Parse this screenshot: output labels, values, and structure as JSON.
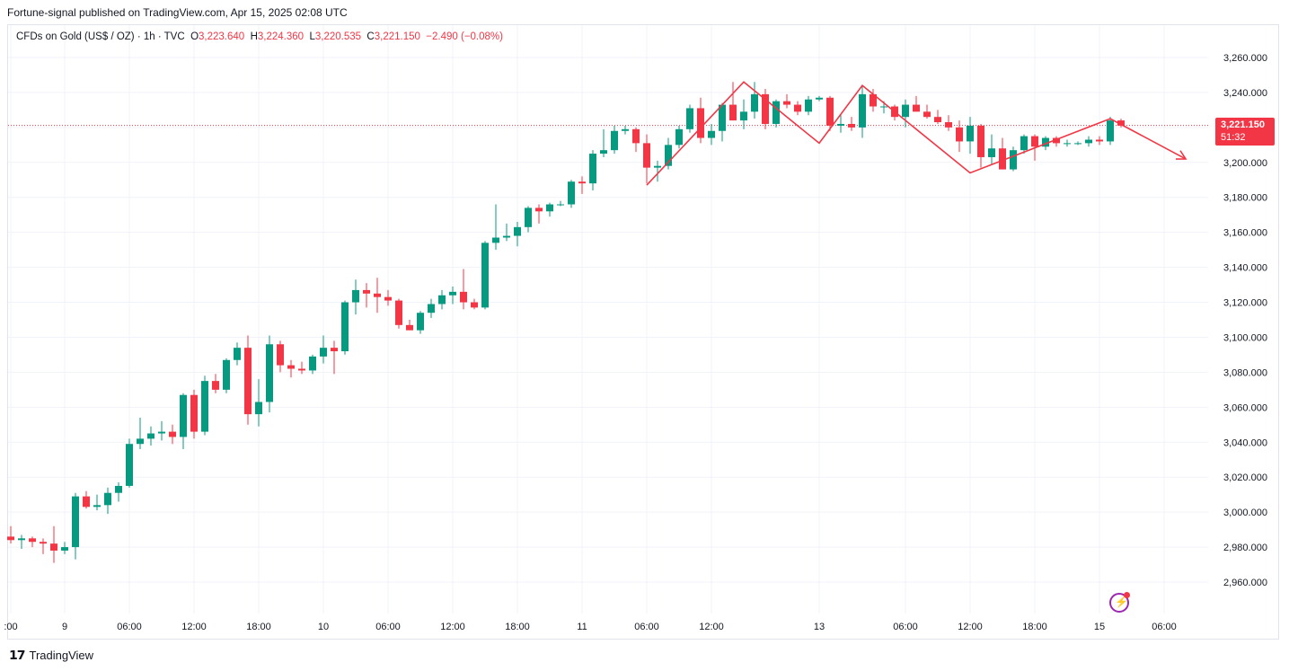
{
  "header": {
    "publisher_line": "Fortune-signal published on TradingView.com, Apr 15, 2025 02:08 UTC"
  },
  "legend": {
    "symbol": "CFDs on Gold (US$ / OZ) · 1h · TVC",
    "o_label": "O",
    "o_value": "3,223.640",
    "h_label": "H",
    "h_value": "3,224.360",
    "l_label": "L",
    "l_value": "3,220.535",
    "c_label": "C",
    "c_value": "3,221.150",
    "change": "−2.490 (−0.08%)"
  },
  "price_label": {
    "price": "3,221.150",
    "countdown": "51:32"
  },
  "footer": {
    "brand": "TradingView"
  },
  "colors": {
    "up": "#089981",
    "down": "#f23645",
    "grid": "#f0f3fa",
    "drawing": "#f23645"
  },
  "icons": [
    "tradingview-logo-icon",
    "flash-icon"
  ],
  "chart_data": {
    "type": "candlestick",
    "ylim": [
      2945,
      3270
    ],
    "y_ticks": [
      "3,260.000",
      "3,240.000",
      "3,220.000",
      "3,200.000",
      "3,180.000",
      "3,160.000",
      "3,140.000",
      "3,120.000",
      "3,100.000",
      "3,080.000",
      "3,060.000",
      "3,040.000",
      "3,020.000",
      "3,000.000",
      "2,980.000",
      "2,960.000"
    ],
    "y_tick_values": [
      3260,
      3240,
      3220,
      3200,
      3180,
      3160,
      3140,
      3120,
      3100,
      3080,
      3060,
      3040,
      3020,
      3000,
      2980,
      2960
    ],
    "x_ticks": [
      {
        "label": ":00",
        "i": 0
      },
      {
        "label": "9",
        "i": 5
      },
      {
        "label": "06:00",
        "i": 11
      },
      {
        "label": "12:00",
        "i": 17
      },
      {
        "label": "18:00",
        "i": 23
      },
      {
        "label": "10",
        "i": 29
      },
      {
        "label": "06:00",
        "i": 35
      },
      {
        "label": "12:00",
        "i": 41
      },
      {
        "label": "18:00",
        "i": 47
      },
      {
        "label": "11",
        "i": 53
      },
      {
        "label": "06:00",
        "i": 59
      },
      {
        "label": "12:00",
        "i": 65
      },
      {
        "label": "13",
        "i": 75
      },
      {
        "label": "06:00",
        "i": 83
      },
      {
        "label": "12:00",
        "i": 89
      },
      {
        "label": "18:00",
        "i": 95
      },
      {
        "label": "15",
        "i": 101
      },
      {
        "label": "06:00",
        "i": 107
      }
    ],
    "last_price": 3221.15,
    "candles": [
      [
        2986,
        2992,
        2982,
        2984
      ],
      [
        2984,
        2987,
        2979,
        2985
      ],
      [
        2985,
        2986,
        2980,
        2983
      ],
      [
        2983,
        2985,
        2976,
        2982
      ],
      [
        2982,
        2992,
        2971,
        2978
      ],
      [
        2978,
        2983,
        2976,
        2980
      ],
      [
        2980,
        3011,
        2973,
        3009
      ],
      [
        3009,
        3012,
        3002,
        3003
      ],
      [
        3003,
        3010,
        3001,
        3004
      ],
      [
        3004,
        3014,
        2999,
        3011
      ],
      [
        3011,
        3017,
        3006,
        3015
      ],
      [
        3015,
        3042,
        3014,
        3039
      ],
      [
        3039,
        3054,
        3036,
        3042
      ],
      [
        3042,
        3049,
        3038,
        3045
      ],
      [
        3045,
        3052,
        3041,
        3046
      ],
      [
        3046,
        3050,
        3039,
        3043
      ],
      [
        3043,
        3068,
        3036,
        3067
      ],
      [
        3067,
        3070,
        3042,
        3046
      ],
      [
        3046,
        3078,
        3044,
        3075
      ],
      [
        3075,
        3079,
        3068,
        3070
      ],
      [
        3070,
        3088,
        3068,
        3087
      ],
      [
        3087,
        3097,
        3084,
        3094
      ],
      [
        3094,
        3101,
        3050,
        3056
      ],
      [
        3056,
        3076,
        3049,
        3063
      ],
      [
        3063,
        3101,
        3057,
        3096
      ],
      [
        3096,
        3098,
        3080,
        3084
      ],
      [
        3084,
        3087,
        3077,
        3082
      ],
      [
        3082,
        3086,
        3079,
        3081
      ],
      [
        3081,
        3090,
        3079,
        3089
      ],
      [
        3089,
        3101,
        3085,
        3094
      ],
      [
        3094,
        3098,
        3079,
        3092
      ],
      [
        3092,
        3121,
        3090,
        3120
      ],
      [
        3120,
        3133,
        3113,
        3127
      ],
      [
        3127,
        3131,
        3117,
        3125
      ],
      [
        3125,
        3134,
        3114,
        3123
      ],
      [
        3123,
        3127,
        3118,
        3121
      ],
      [
        3121,
        3122,
        3105,
        3107
      ],
      [
        3107,
        3110,
        3104,
        3104
      ],
      [
        3104,
        3115,
        3102,
        3114
      ],
      [
        3114,
        3122,
        3111,
        3119
      ],
      [
        3119,
        3127,
        3116,
        3124
      ],
      [
        3124,
        3129,
        3119,
        3126
      ],
      [
        3126,
        3139,
        3116,
        3120
      ],
      [
        3120,
        3122,
        3116,
        3117
      ],
      [
        3117,
        3155,
        3116,
        3154
      ],
      [
        3154,
        3176,
        3150,
        3157
      ],
      [
        3157,
        3165,
        3155,
        3158
      ],
      [
        3158,
        3166,
        3152,
        3163
      ],
      [
        3163,
        3175,
        3160,
        3174
      ],
      [
        3174,
        3176,
        3165,
        3172
      ],
      [
        3172,
        3177,
        3169,
        3176
      ],
      [
        3176,
        3178,
        3175,
        3176
      ],
      [
        3176,
        3190,
        3174,
        3189
      ],
      [
        3189,
        3192,
        3182,
        3188
      ],
      [
        3188,
        3207,
        3184,
        3205
      ],
      [
        3205,
        3219,
        3203,
        3207
      ],
      [
        3207,
        3221,
        3205,
        3218
      ],
      [
        3218,
        3221,
        3216,
        3219
      ],
      [
        3219,
        3220,
        3206,
        3211
      ],
      [
        3211,
        3216,
        3188,
        3197
      ],
      [
        3197,
        3201,
        3189,
        3198
      ],
      [
        3198,
        3214,
        3196,
        3210
      ],
      [
        3210,
        3221,
        3208,
        3219
      ],
      [
        3219,
        3233,
        3217,
        3231
      ],
      [
        3231,
        3237,
        3211,
        3214
      ],
      [
        3214,
        3222,
        3210,
        3218
      ],
      [
        3218,
        3234,
        3212,
        3233
      ],
      [
        3233,
        3246,
        3224,
        3224
      ],
      [
        3224,
        3236,
        3219,
        3229
      ],
      [
        3229,
        3246,
        3225,
        3239
      ],
      [
        3239,
        3242,
        3219,
        3222
      ],
      [
        3222,
        3236,
        3220,
        3235
      ],
      [
        3235,
        3239,
        3231,
        3233
      ],
      [
        3233,
        3235,
        3227,
        3229
      ],
      [
        3229,
        3238,
        3227,
        3236
      ],
      [
        3236,
        3238,
        3235,
        3237
      ],
      [
        3237,
        3238,
        3218,
        3221
      ],
      [
        3221,
        3227,
        3217,
        3222
      ],
      [
        3222,
        3226,
        3218,
        3220
      ],
      [
        3220,
        3244,
        3214,
        3239
      ],
      [
        3239,
        3242,
        3229,
        3232
      ],
      [
        3232,
        3235,
        3228,
        3232
      ],
      [
        3232,
        3233,
        3224,
        3226
      ],
      [
        3226,
        3236,
        3220,
        3233
      ],
      [
        3233,
        3238,
        3229,
        3229
      ],
      [
        3229,
        3233,
        3225,
        3226
      ],
      [
        3226,
        3230,
        3222,
        3223
      ],
      [
        3223,
        3227,
        3218,
        3220
      ],
      [
        3220,
        3224,
        3206,
        3212
      ],
      [
        3212,
        3226,
        3205,
        3221
      ],
      [
        3221,
        3222,
        3197,
        3203
      ],
      [
        3203,
        3216,
        3199,
        3208
      ],
      [
        3208,
        3214,
        3196,
        3196
      ],
      [
        3196,
        3209,
        3195,
        3207
      ],
      [
        3207,
        3216,
        3205,
        3215
      ],
      [
        3215,
        3216,
        3201,
        3209
      ],
      [
        3209,
        3215,
        3207,
        3214
      ],
      [
        3214,
        3215,
        3209,
        3211
      ],
      [
        3211,
        3213,
        3209,
        3211
      ],
      [
        3211,
        3212,
        3210,
        3211
      ],
      [
        3211,
        3215,
        3209,
        3213
      ],
      [
        3213,
        3215,
        3210,
        3212
      ],
      [
        3212,
        3226,
        3210,
        3224
      ],
      [
        3224,
        3225,
        3220,
        3221
      ]
    ],
    "drawing_path": [
      [
        59,
        3187
      ],
      [
        68,
        3246
      ],
      [
        75,
        3211
      ],
      [
        79,
        3244
      ],
      [
        89,
        3194
      ],
      [
        102,
        3225
      ],
      [
        109,
        3202
      ]
    ]
  }
}
